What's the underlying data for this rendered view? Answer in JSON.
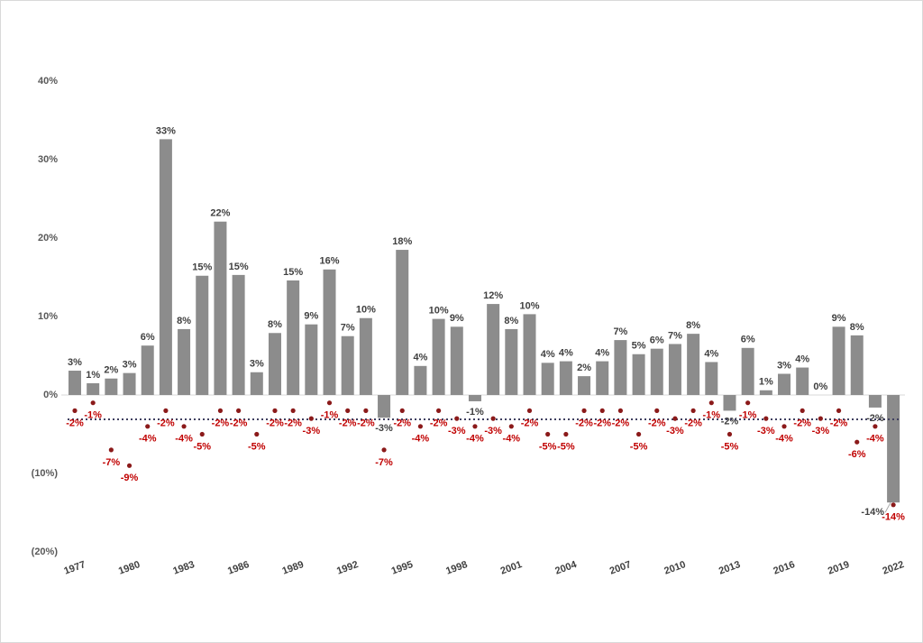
{
  "chart_data": {
    "type": "bar",
    "categories": [
      "1977",
      null,
      null,
      "1980",
      null,
      null,
      "1983",
      null,
      null,
      "1986",
      null,
      null,
      "1989",
      null,
      null,
      "1992",
      null,
      null,
      "1995",
      null,
      null,
      "1998",
      null,
      null,
      "2001",
      null,
      null,
      "2004",
      null,
      null,
      "2007",
      null,
      null,
      "2010",
      null,
      null,
      "2013",
      null,
      null,
      "2016",
      null,
      null,
      "2019",
      null,
      null,
      "2022"
    ],
    "series": [
      {
        "type": "bar",
        "color": "#8c8c8c",
        "values": [
          3.1,
          1.5,
          2.1,
          2.8,
          6.3,
          32.6,
          8.4,
          15.2,
          22.1,
          15.3,
          2.9,
          7.9,
          14.6,
          9.0,
          16.0,
          7.5,
          9.8,
          -2.9,
          18.5,
          3.7,
          9.7,
          8.7,
          -0.8,
          11.6,
          8.4,
          10.3,
          4.1,
          4.3,
          2.4,
          4.3,
          7.0,
          5.2,
          5.9,
          6.5,
          7.8,
          4.2,
          -2.0,
          6.0,
          0.6,
          2.7,
          3.5,
          0.0,
          8.7,
          7.6,
          -1.6,
          -13.7
        ],
        "value_labels": [
          "3%",
          "1%",
          "2%",
          "3%",
          "6%",
          "33%",
          "8%",
          "15%",
          "22%",
          "15%",
          "3%",
          "8%",
          "15%",
          "9%",
          "16%",
          "7%",
          "10%",
          "-3%",
          "18%",
          "4%",
          "10%",
          "9%",
          "-1%",
          "12%",
          "8%",
          "10%",
          "4%",
          "4%",
          "2%",
          "4%",
          "7%",
          "5%",
          "6%",
          "7%",
          "8%",
          "4%",
          "-2%",
          "6%",
          "1%",
          "3%",
          "4%",
          "0%",
          "9%",
          "8%",
          "-2%",
          "-14%"
        ]
      },
      {
        "type": "dot",
        "color": "#8b1a1a",
        "values": [
          -2,
          -1,
          -7,
          -9,
          -4,
          -2,
          -4,
          -5,
          -2,
          -2,
          -5,
          -2,
          -2,
          -3,
          -1,
          -2,
          -2,
          -7,
          -2,
          -4,
          -2,
          -3,
          -4,
          -3,
          -4,
          -2,
          -5,
          -5,
          -2,
          -2,
          -2,
          -5,
          -2,
          -3,
          -2,
          -1,
          -5,
          -1,
          -3,
          -4,
          -2,
          -3,
          -2,
          -6,
          -4,
          -14
        ],
        "value_labels": [
          "-2%",
          "-1%",
          "-7%",
          "-9%",
          "-4%",
          "-2%",
          "-4%",
          "-5%",
          "-2%",
          "-2%",
          "-5%",
          "-2%",
          "-2%",
          "-3%",
          "-1%",
          "-2%",
          "-2%",
          "-7%",
          "-2%",
          "-4%",
          "-2%",
          "-3%",
          "-4%",
          "-3%",
          "-4%",
          "-2%",
          "-5%",
          "-5%",
          "-2%",
          "-2%",
          "-2%",
          "-5%",
          "-2%",
          "-3%",
          "-2%",
          "-1%",
          "-5%",
          "-1%",
          "-3%",
          "-4%",
          "-2%",
          "-3%",
          "-2%",
          "-6%",
          "-4%",
          "-14%"
        ]
      }
    ],
    "reference_line": -3.1,
    "ylim": [
      -20,
      40
    ],
    "yticks": [
      {
        "value": -20,
        "label": "(20%)"
      },
      {
        "value": -10,
        "label": "(10%)"
      },
      {
        "value": 0,
        "label": "0%"
      },
      {
        "value": 10,
        "label": "10%"
      },
      {
        "value": 20,
        "label": "20%"
      },
      {
        "value": 30,
        "label": "30%"
      },
      {
        "value": 40,
        "label": "40%"
      }
    ]
  }
}
